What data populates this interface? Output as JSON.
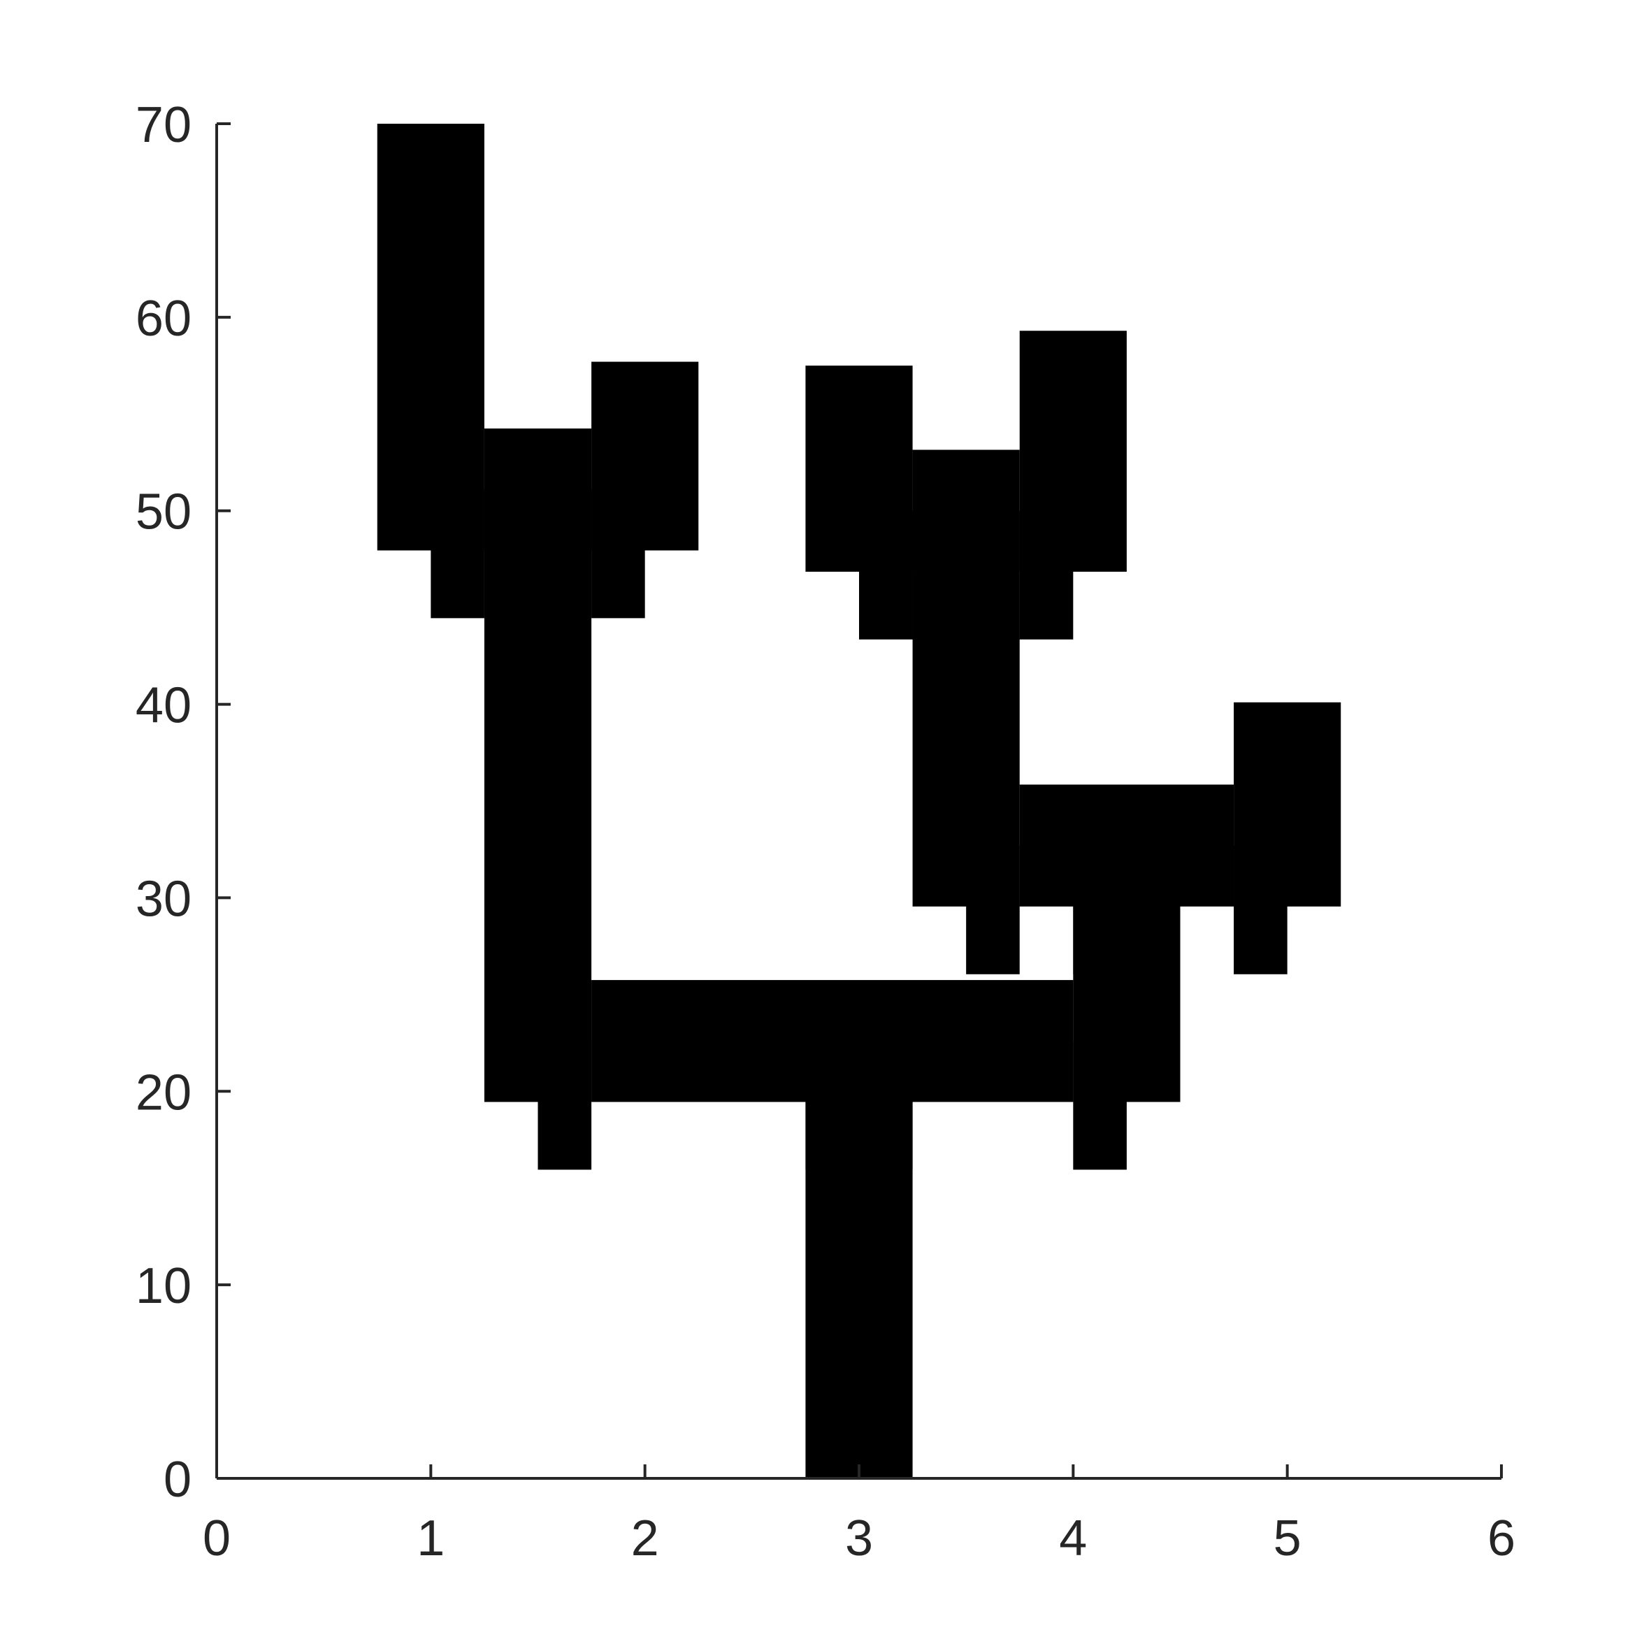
{
  "chart_data": {
    "type": "dendrogram",
    "title": "",
    "xlabel": "",
    "ylabel": "",
    "xlim": [
      0,
      6
    ],
    "ylim": [
      0,
      70
    ],
    "grid": false,
    "legend": "none",
    "x_ticks": [
      "0",
      "1",
      "2",
      "3",
      "4",
      "5",
      "6"
    ],
    "y_ticks": [
      "0",
      "10",
      "20",
      "30",
      "40",
      "50",
      "60",
      "70"
    ],
    "line_color": "#000000",
    "axis_color": "#262626",
    "leaves": [
      1,
      2,
      3,
      4,
      5
    ],
    "merges": [
      {
        "left_x": 1,
        "right_x": 2,
        "left_top": 70,
        "right_top": 57.7,
        "height": 51.1,
        "merged_x": 1.5
      },
      {
        "left_x": 3,
        "right_x": 4,
        "left_top": 57.5,
        "right_top": 59.3,
        "height": 50.0,
        "merged_x": 3.5
      },
      {
        "left_x": 3.5,
        "right_x": 5,
        "left_top": 50.0,
        "right_top": 40.1,
        "height": 32.7,
        "merged_x": 4.25
      },
      {
        "left_x": 1.5,
        "right_x": 4.25,
        "left_top": 51.1,
        "right_top": 32.7,
        "height": 22.6,
        "merged_x": 3.0
      },
      {
        "left_x": 3.0,
        "right_x": 3.0,
        "left_top": 22.6,
        "right_top": 22.6,
        "height": 0,
        "merged_x": 3.0
      }
    ]
  }
}
